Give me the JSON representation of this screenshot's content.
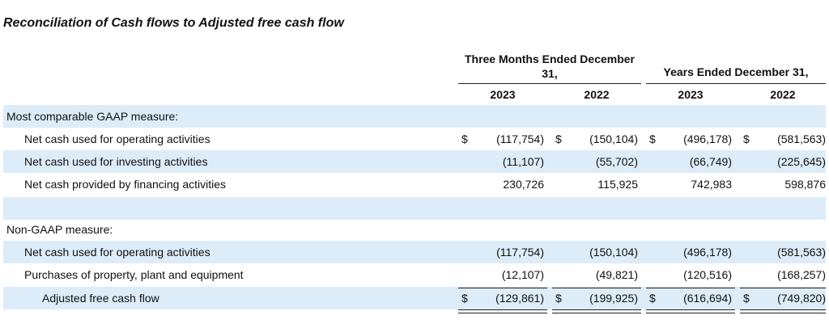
{
  "title": "Reconciliation of Cash flows to Adjusted free cash flow",
  "headers": {
    "three_months": "Three Months Ended December 31,",
    "years": "Years Ended December 31,",
    "cols": [
      "2023",
      "2022",
      "2023",
      "2022"
    ]
  },
  "rows": [
    {
      "label": "Most comparable GAAP measure:",
      "cells": [
        "",
        "",
        "",
        ""
      ],
      "currency": false
    },
    {
      "label": "Net cash used for operating activities",
      "cells": [
        "(117,754)",
        "(150,104)",
        "(496,178)",
        "(581,563)"
      ],
      "currency": true
    },
    {
      "label": "Net cash used for investing activities",
      "cells": [
        "(11,107)",
        "(55,702)",
        "(66,749)",
        "(225,645)"
      ],
      "currency": false
    },
    {
      "label": "Net cash provided by financing activities",
      "cells": [
        "230,726",
        "115,925",
        "742,983",
        "598,876"
      ],
      "currency": false
    },
    {
      "label": "",
      "cells": [
        "",
        "",
        "",
        ""
      ],
      "currency": false
    },
    {
      "label": "Non-GAAP measure:",
      "cells": [
        "",
        "",
        "",
        ""
      ],
      "currency": false
    },
    {
      "label": "Net cash used for operating activities",
      "cells": [
        "(117,754)",
        "(150,104)",
        "(496,178)",
        "(581,563)"
      ],
      "currency": false
    },
    {
      "label": "Purchases of property, plant and equipment",
      "cells": [
        "(12,107)",
        "(49,821)",
        "(120,516)",
        "(168,257)"
      ],
      "currency": false
    },
    {
      "label": "Adjusted free cash flow",
      "cells": [
        "(129,861)",
        "(199,925)",
        "(616,694)",
        "(749,820)"
      ],
      "currency": true
    }
  ],
  "currency_symbol": "$",
  "colors": {
    "shade": "#dcecf9"
  }
}
